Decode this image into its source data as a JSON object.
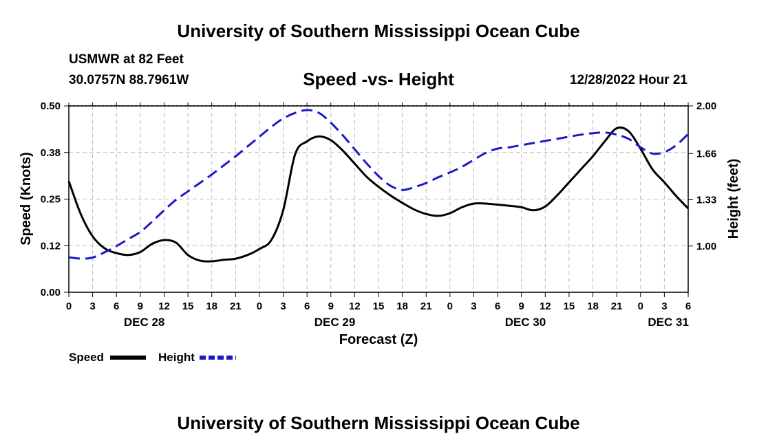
{
  "title": "University of Southern Mississippi Ocean Cube",
  "title_bottom": "University of Southern Mississippi Ocean Cube",
  "station": "USMWR at 82 Feet",
  "coords": "30.0757N  88.7961W",
  "chart_subtitle": "Speed -vs- Height",
  "datetime": "12/28/2022 Hour 21",
  "colors": {
    "speed": "#000000",
    "height": "#1a1acc",
    "grid": "#bbbbbb"
  },
  "chart_data": {
    "type": "line",
    "title": "Speed -vs- Height",
    "xlabel": "Forecast (Z)",
    "ylabel": "Speed (Knots)",
    "y2label": "Height (feet)",
    "x_range_hours": [
      0,
      78
    ],
    "ylim": [
      0,
      0.5
    ],
    "y2lim": [
      0.67,
      2.0
    ],
    "x_tick_labels": [
      "0",
      "3",
      "6",
      "9",
      "12",
      "15",
      "18",
      "21",
      "0",
      "3",
      "6",
      "9",
      "12",
      "15",
      "18",
      "21",
      "0",
      "3",
      "6",
      "9",
      "12",
      "15",
      "18",
      "21",
      "0",
      "3",
      "6"
    ],
    "date_labels": [
      {
        "label": "DEC 28",
        "hour": 9.5
      },
      {
        "label": "DEC 29",
        "hour": 33.5
      },
      {
        "label": "DEC 30",
        "hour": 57.5
      },
      {
        "label": "DEC 31",
        "hour": 75.5
      }
    ],
    "y_ticks": [
      "0.00",
      "0.12",
      "0.25",
      "0.38",
      "0.50"
    ],
    "y2_ticks": [
      "1.00",
      "1.33",
      "1.66",
      "2.00"
    ],
    "grid": true,
    "legend_position": "bottom-left",
    "legend": [
      "Speed",
      "Height"
    ],
    "series": [
      {
        "name": "Speed",
        "style": "solid",
        "axis": "left",
        "x": [
          0,
          1.5,
          3,
          4.5,
          6,
          7.5,
          9,
          10.5,
          12,
          13.5,
          15,
          16.5,
          18,
          19.5,
          21,
          22.5,
          24,
          25.5,
          27,
          28.5,
          30,
          31.5,
          33,
          34.5,
          36,
          37.5,
          39,
          40.5,
          42,
          43.5,
          45,
          46.5,
          48,
          49.5,
          51,
          52.5,
          54,
          55.5,
          57,
          58.5,
          60,
          61.5,
          63,
          64.5,
          66,
          67.5,
          69,
          70.5,
          72,
          73.5,
          75,
          76.5,
          78
        ],
        "values": [
          0.298,
          0.21,
          0.15,
          0.118,
          0.105,
          0.1,
          0.108,
          0.13,
          0.14,
          0.133,
          0.1,
          0.085,
          0.083,
          0.087,
          0.09,
          0.1,
          0.116,
          0.14,
          0.22,
          0.37,
          0.405,
          0.418,
          0.408,
          0.38,
          0.345,
          0.31,
          0.283,
          0.26,
          0.24,
          0.222,
          0.21,
          0.205,
          0.212,
          0.228,
          0.238,
          0.238,
          0.235,
          0.232,
          0.228,
          0.22,
          0.23,
          0.26,
          0.295,
          0.33,
          0.365,
          0.405,
          0.44,
          0.432,
          0.385,
          0.33,
          0.295,
          0.258,
          0.225
        ]
      },
      {
        "name": "Height",
        "style": "dashed",
        "axis": "right",
        "x": [
          0,
          1.5,
          3,
          4.5,
          6,
          7.5,
          9,
          10.5,
          12,
          13.5,
          15,
          16.5,
          18,
          19.5,
          21,
          22.5,
          24,
          25.5,
          27,
          28.5,
          30,
          31.5,
          33,
          34.5,
          36,
          37.5,
          39,
          40.5,
          42,
          43.5,
          45,
          46.5,
          48,
          49.5,
          51,
          52.5,
          54,
          55.5,
          57,
          58.5,
          60,
          61.5,
          63,
          64.5,
          66,
          67.5,
          69,
          70.5,
          72,
          73.5,
          75,
          76.5,
          78
        ],
        "values": [
          0.92,
          0.91,
          0.918,
          0.955,
          1.0,
          1.05,
          1.1,
          1.175,
          1.255,
          1.33,
          1.39,
          1.45,
          1.51,
          1.575,
          1.64,
          1.71,
          1.78,
          1.85,
          1.91,
          1.95,
          1.97,
          1.95,
          1.88,
          1.79,
          1.69,
          1.59,
          1.5,
          1.43,
          1.4,
          1.42,
          1.45,
          1.49,
          1.525,
          1.565,
          1.615,
          1.665,
          1.695,
          1.705,
          1.72,
          1.735,
          1.75,
          1.765,
          1.78,
          1.795,
          1.805,
          1.81,
          1.795,
          1.765,
          1.705,
          1.66,
          1.67,
          1.72,
          1.8
        ]
      }
    ]
  }
}
